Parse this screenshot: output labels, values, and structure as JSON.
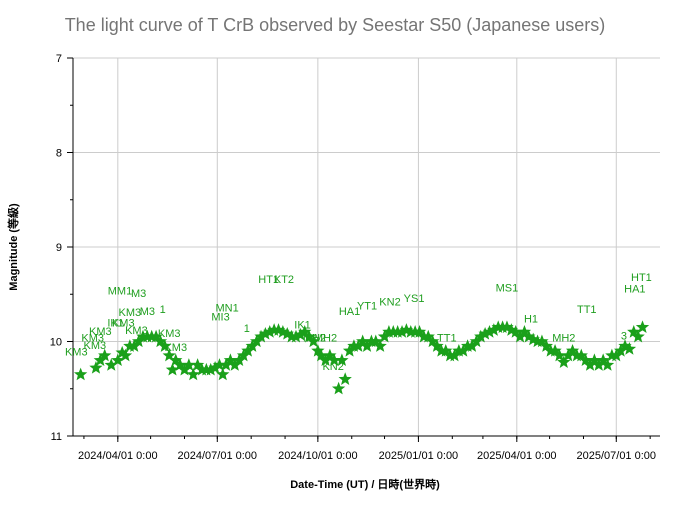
{
  "chart_data": {
    "type": "scatter",
    "title": "The light curve of T CrB observed by Seestar S50 (Japanese users)",
    "xlabel": "Date-Time (UT) / 日時(世界時)",
    "ylabel": "Magnitude (等級)",
    "ylim": [
      11,
      7
    ],
    "y_inverted": true,
    "grid": true,
    "colors": {
      "marker": "#1aa01a",
      "label": "#1f9e1f",
      "grid": "#cccccc",
      "title": "#757575"
    },
    "marker": "star",
    "x_ticks": [
      "2024/04/01 0:00",
      "2024/07/01 0:00",
      "2024/10/01 0:00",
      "2025/01/01 0:00",
      "2025/04/01 0:00",
      "2025/07/01 0:00"
    ],
    "y_ticks": [
      "7",
      "8",
      "9",
      "10",
      "11"
    ],
    "xlim": [
      "2024-02-20",
      "2025-08-10"
    ],
    "series": [
      {
        "points": [
          {
            "x": "2024-02-27",
            "y": 10.35
          },
          {
            "x": "2024-03-12",
            "y": 10.28
          },
          {
            "x": "2024-03-16",
            "y": 10.2
          },
          {
            "x": "2024-03-20",
            "y": 10.15
          },
          {
            "x": "2024-03-26",
            "y": 10.25
          },
          {
            "x": "2024-04-01",
            "y": 10.2
          },
          {
            "x": "2024-04-05",
            "y": 10.12
          },
          {
            "x": "2024-04-08",
            "y": 10.15
          },
          {
            "x": "2024-04-12",
            "y": 10.05
          },
          {
            "x": "2024-04-16",
            "y": 10.05
          },
          {
            "x": "2024-04-20",
            "y": 10.0
          },
          {
            "x": "2024-04-24",
            "y": 9.95
          },
          {
            "x": "2024-04-28",
            "y": 9.95
          },
          {
            "x": "2024-05-02",
            "y": 9.95
          },
          {
            "x": "2024-05-06",
            "y": 9.95
          },
          {
            "x": "2024-05-10",
            "y": 10.0
          },
          {
            "x": "2024-05-14",
            "y": 10.05
          },
          {
            "x": "2024-05-18",
            "y": 10.15
          },
          {
            "x": "2024-05-21",
            "y": 10.3
          },
          {
            "x": "2024-05-24",
            "y": 10.2
          },
          {
            "x": "2024-05-28",
            "y": 10.25
          },
          {
            "x": "2024-06-01",
            "y": 10.3
          },
          {
            "x": "2024-06-05",
            "y": 10.25
          },
          {
            "x": "2024-06-09",
            "y": 10.35
          },
          {
            "x": "2024-06-13",
            "y": 10.25
          },
          {
            "x": "2024-06-17",
            "y": 10.3
          },
          {
            "x": "2024-06-21",
            "y": 10.3
          },
          {
            "x": "2024-06-25",
            "y": 10.3
          },
          {
            "x": "2024-06-29",
            "y": 10.28
          },
          {
            "x": "2024-07-03",
            "y": 10.25
          },
          {
            "x": "2024-07-06",
            "y": 10.35
          },
          {
            "x": "2024-07-09",
            "y": 10.25
          },
          {
            "x": "2024-07-13",
            "y": 10.2
          },
          {
            "x": "2024-07-17",
            "y": 10.25
          },
          {
            "x": "2024-07-21",
            "y": 10.2
          },
          {
            "x": "2024-07-25",
            "y": 10.15
          },
          {
            "x": "2024-07-29",
            "y": 10.1
          },
          {
            "x": "2024-08-02",
            "y": 10.05
          },
          {
            "x": "2024-08-06",
            "y": 10.0
          },
          {
            "x": "2024-08-10",
            "y": 9.95
          },
          {
            "x": "2024-08-14",
            "y": 9.92
          },
          {
            "x": "2024-08-18",
            "y": 9.9
          },
          {
            "x": "2024-08-22",
            "y": 9.88
          },
          {
            "x": "2024-08-26",
            "y": 9.88
          },
          {
            "x": "2024-08-30",
            "y": 9.9
          },
          {
            "x": "2024-09-03",
            "y": 9.92
          },
          {
            "x": "2024-09-07",
            "y": 9.95
          },
          {
            "x": "2024-09-11",
            "y": 9.95
          },
          {
            "x": "2024-09-15",
            "y": 9.93
          },
          {
            "x": "2024-09-19",
            "y": 9.9
          },
          {
            "x": "2024-09-23",
            "y": 9.95
          },
          {
            "x": "2024-09-27",
            "y": 10.0
          },
          {
            "x": "2024-10-01",
            "y": 10.1
          },
          {
            "x": "2024-10-04",
            "y": 10.15
          },
          {
            "x": "2024-10-08",
            "y": 10.2
          },
          {
            "x": "2024-10-12",
            "y": 10.15
          },
          {
            "x": "2024-10-16",
            "y": 10.2
          },
          {
            "x": "2024-10-20",
            "y": 10.5
          },
          {
            "x": "2024-10-23",
            "y": 10.2
          },
          {
            "x": "2024-10-26",
            "y": 10.4
          },
          {
            "x": "2024-10-30",
            "y": 10.1
          },
          {
            "x": "2024-11-03",
            "y": 10.05
          },
          {
            "x": "2024-11-07",
            "y": 10.05
          },
          {
            "x": "2024-11-11",
            "y": 10.0
          },
          {
            "x": "2024-11-15",
            "y": 10.05
          },
          {
            "x": "2024-11-19",
            "y": 10.0
          },
          {
            "x": "2024-11-23",
            "y": 10.0
          },
          {
            "x": "2024-11-27",
            "y": 10.05
          },
          {
            "x": "2024-12-01",
            "y": 9.95
          },
          {
            "x": "2024-12-05",
            "y": 9.9
          },
          {
            "x": "2024-12-09",
            "y": 9.9
          },
          {
            "x": "2024-12-13",
            "y": 9.9
          },
          {
            "x": "2024-12-17",
            "y": 9.9
          },
          {
            "x": "2024-12-21",
            "y": 9.88
          },
          {
            "x": "2024-12-25",
            "y": 9.9
          },
          {
            "x": "2024-12-29",
            "y": 9.9
          },
          {
            "x": "2025-01-02",
            "y": 9.9
          },
          {
            "x": "2025-01-06",
            "y": 9.95
          },
          {
            "x": "2025-01-10",
            "y": 9.95
          },
          {
            "x": "2025-01-14",
            "y": 10.0
          },
          {
            "x": "2025-01-18",
            "y": 10.05
          },
          {
            "x": "2025-01-22",
            "y": 10.1
          },
          {
            "x": "2025-01-26",
            "y": 10.1
          },
          {
            "x": "2025-01-30",
            "y": 10.15
          },
          {
            "x": "2025-02-03",
            "y": 10.15
          },
          {
            "x": "2025-02-07",
            "y": 10.1
          },
          {
            "x": "2025-02-11",
            "y": 10.1
          },
          {
            "x": "2025-02-15",
            "y": 10.05
          },
          {
            "x": "2025-02-19",
            "y": 10.05
          },
          {
            "x": "2025-02-23",
            "y": 10.0
          },
          {
            "x": "2025-02-27",
            "y": 9.95
          },
          {
            "x": "2025-03-03",
            "y": 9.92
          },
          {
            "x": "2025-03-07",
            "y": 9.9
          },
          {
            "x": "2025-03-11",
            "y": 9.88
          },
          {
            "x": "2025-03-15",
            "y": 9.85
          },
          {
            "x": "2025-03-19",
            "y": 9.85
          },
          {
            "x": "2025-03-23",
            "y": 9.85
          },
          {
            "x": "2025-03-27",
            "y": 9.88
          },
          {
            "x": "2025-03-31",
            "y": 9.9
          },
          {
            "x": "2025-04-04",
            "y": 9.95
          },
          {
            "x": "2025-04-08",
            "y": 9.9
          },
          {
            "x": "2025-04-12",
            "y": 9.95
          },
          {
            "x": "2025-04-16",
            "y": 9.98
          },
          {
            "x": "2025-04-20",
            "y": 10.0
          },
          {
            "x": "2025-04-24",
            "y": 10.0
          },
          {
            "x": "2025-04-28",
            "y": 10.05
          },
          {
            "x": "2025-05-02",
            "y": 10.1
          },
          {
            "x": "2025-05-06",
            "y": 10.1
          },
          {
            "x": "2025-05-10",
            "y": 10.15
          },
          {
            "x": "2025-05-14",
            "y": 10.22
          },
          {
            "x": "2025-05-18",
            "y": 10.15
          },
          {
            "x": "2025-05-22",
            "y": 10.1
          },
          {
            "x": "2025-05-26",
            "y": 10.15
          },
          {
            "x": "2025-05-30",
            "y": 10.15
          },
          {
            "x": "2025-06-03",
            "y": 10.2
          },
          {
            "x": "2025-06-07",
            "y": 10.25
          },
          {
            "x": "2025-06-11",
            "y": 10.2
          },
          {
            "x": "2025-06-15",
            "y": 10.25
          },
          {
            "x": "2025-06-19",
            "y": 10.2
          },
          {
            "x": "2025-06-23",
            "y": 10.25
          },
          {
            "x": "2025-06-27",
            "y": 10.15
          },
          {
            "x": "2025-07-01",
            "y": 10.15
          },
          {
            "x": "2025-07-05",
            "y": 10.1
          },
          {
            "x": "2025-07-09",
            "y": 10.05
          },
          {
            "x": "2025-07-13",
            "y": 10.08
          },
          {
            "x": "2025-07-17",
            "y": 9.9
          },
          {
            "x": "2025-07-21",
            "y": 9.95
          },
          {
            "x": "2025-07-25",
            "y": 9.85
          }
        ]
      }
    ],
    "annotations": [
      {
        "text": "KM3",
        "x": "2024-02-23",
        "y": 10.15
      },
      {
        "text": "KM3",
        "x": "2024-03-09",
        "y": 10.0
      },
      {
        "text": "KM3",
        "x": "2024-03-11",
        "y": 10.08
      },
      {
        "text": "KM3",
        "x": "2024-03-16",
        "y": 9.93
      },
      {
        "text": "IK1",
        "x": "2024-03-30",
        "y": 9.84
      },
      {
        "text": "KM3",
        "x": "2024-04-06",
        "y": 9.84
      },
      {
        "text": "KM3",
        "x": "2024-04-12",
        "y": 9.73
      },
      {
        "text": "KM3",
        "x": "2024-04-18",
        "y": 9.92
      },
      {
        "text": "MM1",
        "x": "2024-04-03",
        "y": 9.5
      },
      {
        "text": "M3",
        "x": "2024-04-20",
        "y": 9.53
      },
      {
        "text": "M3",
        "x": "2024-04-28",
        "y": 9.72
      },
      {
        "text": "KM3",
        "x": "2024-05-18",
        "y": 9.95
      },
      {
        "text": "KM3",
        "x": "2024-05-24",
        "y": 10.1
      },
      {
        "text": "1",
        "x": "2024-05-12",
        "y": 9.7
      },
      {
        "text": "MN1",
        "x": "2024-07-10",
        "y": 9.68
      },
      {
        "text": "MI3",
        "x": "2024-07-04",
        "y": 9.78
      },
      {
        "text": "1",
        "x": "2024-07-28",
        "y": 9.9
      },
      {
        "text": "HT1",
        "x": "2024-08-17",
        "y": 9.38
      },
      {
        "text": "KT2",
        "x": "2024-08-31",
        "y": 9.38
      },
      {
        "text": "IK1",
        "x": "2024-09-17",
        "y": 9.86
      },
      {
        "text": "MH2",
        "x": "2024-09-28",
        "y": 10.0
      },
      {
        "text": "MH2",
        "x": "2024-10-08",
        "y": 10.0
      },
      {
        "text": "KN2",
        "x": "2024-10-15",
        "y": 10.3
      },
      {
        "text": "HA1",
        "x": "2024-10-30",
        "y": 9.72
      },
      {
        "text": "YT1",
        "x": "2024-11-15",
        "y": 9.66
      },
      {
        "text": "KN2",
        "x": "2024-12-06",
        "y": 9.62
      },
      {
        "text": "YS1",
        "x": "2024-12-28",
        "y": 9.58
      },
      {
        "text": "TT1",
        "x": "2025-01-27",
        "y": 10.0
      },
      {
        "text": "MS1",
        "x": "2025-03-23",
        "y": 9.47
      },
      {
        "text": "H1",
        "x": "2025-04-14",
        "y": 9.8
      },
      {
        "text": "TT1",
        "x": "2025-06-04",
        "y": 9.7
      },
      {
        "text": "MH2",
        "x": "2025-05-14",
        "y": 10.0
      },
      {
        "text": "HT1",
        "x": "2025-07-24",
        "y": 9.36
      },
      {
        "text": "HA1",
        "x": "2025-07-18",
        "y": 9.48
      },
      {
        "text": "3",
        "x": "2025-07-08",
        "y": 9.98
      }
    ]
  }
}
